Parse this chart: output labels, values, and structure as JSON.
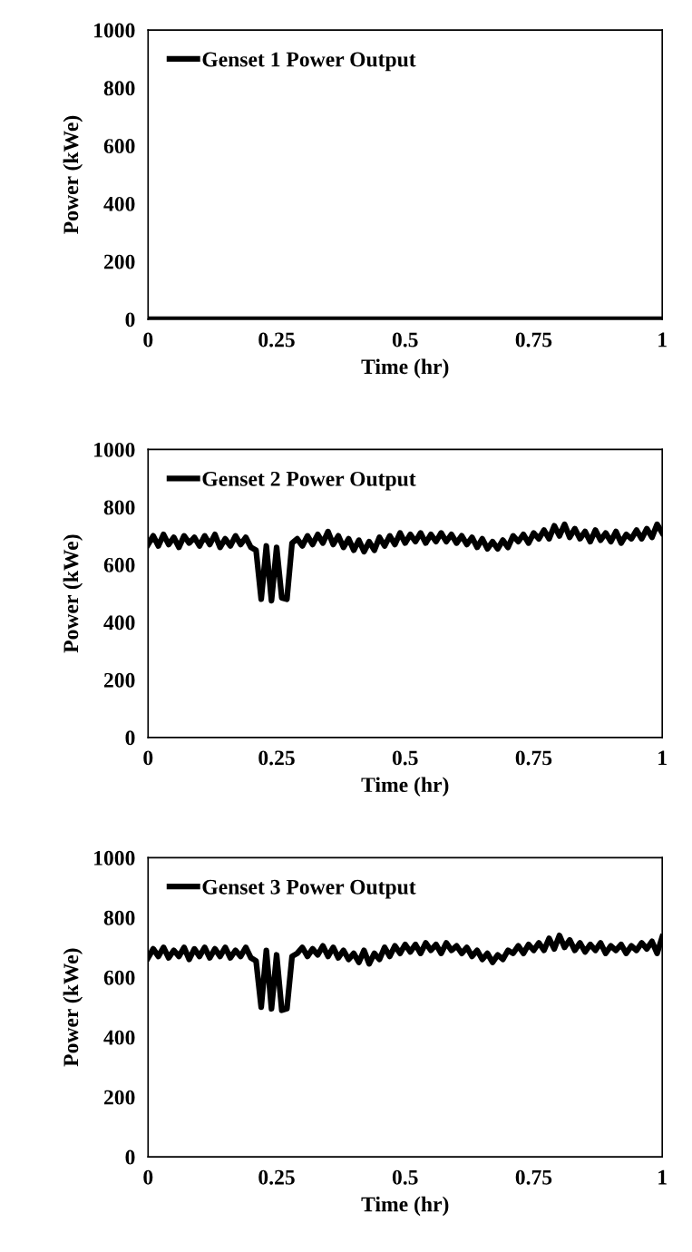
{
  "chart_data": [
    {
      "type": "line",
      "xlabel": "Time (hr)",
      "ylabel": "Power (kWe)",
      "xlim": [
        0,
        1
      ],
      "xticks": [
        0,
        0.25,
        0.5,
        0.75,
        1
      ],
      "ylim": [
        0,
        1000
      ],
      "yticks": [
        0,
        200,
        400,
        600,
        800,
        1000
      ],
      "legend": "top left",
      "series": [
        {
          "name": "Genset 1 Power Output",
          "color": "#000000",
          "x": [
            0,
            1
          ],
          "values": [
            0,
            0
          ]
        }
      ]
    },
    {
      "type": "line",
      "xlabel": "Time (hr)",
      "ylabel": "Power (kWe)",
      "xlim": [
        0,
        1
      ],
      "xticks": [
        0,
        0.25,
        0.5,
        0.75,
        1
      ],
      "ylim": [
        0,
        1000
      ],
      "yticks": [
        0,
        200,
        400,
        600,
        800,
        1000
      ],
      "legend": "top left",
      "series": [
        {
          "name": "Genset 2 Power Output",
          "color": "#000000",
          "x": [
            0,
            0.01,
            0.02,
            0.03,
            0.04,
            0.05,
            0.06,
            0.07,
            0.08,
            0.09,
            0.1,
            0.11,
            0.12,
            0.13,
            0.14,
            0.15,
            0.16,
            0.17,
            0.18,
            0.19,
            0.2,
            0.21,
            0.22,
            0.23,
            0.24,
            0.25,
            0.26,
            0.27,
            0.28,
            0.29,
            0.3,
            0.31,
            0.32,
            0.33,
            0.34,
            0.35,
            0.36,
            0.37,
            0.38,
            0.39,
            0.4,
            0.41,
            0.42,
            0.43,
            0.44,
            0.45,
            0.46,
            0.47,
            0.48,
            0.49,
            0.5,
            0.51,
            0.52,
            0.53,
            0.54,
            0.55,
            0.56,
            0.57,
            0.58,
            0.59,
            0.6,
            0.61,
            0.62,
            0.63,
            0.64,
            0.65,
            0.66,
            0.67,
            0.68,
            0.69,
            0.7,
            0.71,
            0.72,
            0.73,
            0.74,
            0.75,
            0.76,
            0.77,
            0.78,
            0.79,
            0.8,
            0.81,
            0.82,
            0.83,
            0.84,
            0.85,
            0.86,
            0.87,
            0.88,
            0.89,
            0.9,
            0.91,
            0.92,
            0.93,
            0.94,
            0.95,
            0.96,
            0.97,
            0.98,
            0.99,
            1
          ],
          "values": [
            670,
            700,
            665,
            705,
            670,
            695,
            660,
            700,
            675,
            695,
            665,
            700,
            670,
            705,
            660,
            690,
            665,
            700,
            670,
            695,
            660,
            650,
            480,
            665,
            475,
            660,
            485,
            480,
            675,
            690,
            665,
            700,
            670,
            705,
            675,
            715,
            670,
            700,
            660,
            690,
            650,
            685,
            645,
            680,
            650,
            695,
            665,
            700,
            670,
            710,
            675,
            705,
            680,
            710,
            675,
            705,
            680,
            710,
            680,
            705,
            675,
            700,
            670,
            695,
            660,
            690,
            655,
            680,
            655,
            685,
            660,
            700,
            680,
            705,
            675,
            710,
            690,
            720,
            690,
            735,
            700,
            740,
            695,
            725,
            690,
            715,
            680,
            720,
            685,
            710,
            680,
            715,
            675,
            705,
            690,
            720,
            690,
            725,
            695,
            740,
            710
          ]
        }
      ]
    },
    {
      "type": "line",
      "xlabel": "Time (hr)",
      "ylabel": "Power (kWe)",
      "xlim": [
        0,
        1
      ],
      "xticks": [
        0,
        0.25,
        0.5,
        0.75,
        1
      ],
      "ylim": [
        0,
        1000
      ],
      "yticks": [
        0,
        200,
        400,
        600,
        800,
        1000
      ],
      "legend": "top left",
      "series": [
        {
          "name": "Genset 3 Power Output",
          "color": "#000000",
          "x": [
            0,
            0.01,
            0.02,
            0.03,
            0.04,
            0.05,
            0.06,
            0.07,
            0.08,
            0.09,
            0.1,
            0.11,
            0.12,
            0.13,
            0.14,
            0.15,
            0.16,
            0.17,
            0.18,
            0.19,
            0.2,
            0.21,
            0.22,
            0.23,
            0.24,
            0.25,
            0.26,
            0.27,
            0.28,
            0.29,
            0.3,
            0.31,
            0.32,
            0.33,
            0.34,
            0.35,
            0.36,
            0.37,
            0.38,
            0.39,
            0.4,
            0.41,
            0.42,
            0.43,
            0.44,
            0.45,
            0.46,
            0.47,
            0.48,
            0.49,
            0.5,
            0.51,
            0.52,
            0.53,
            0.54,
            0.55,
            0.56,
            0.57,
            0.58,
            0.59,
            0.6,
            0.61,
            0.62,
            0.63,
            0.64,
            0.65,
            0.66,
            0.67,
            0.68,
            0.69,
            0.7,
            0.71,
            0.72,
            0.73,
            0.74,
            0.75,
            0.76,
            0.77,
            0.78,
            0.79,
            0.8,
            0.81,
            0.82,
            0.83,
            0.84,
            0.85,
            0.86,
            0.87,
            0.88,
            0.89,
            0.9,
            0.91,
            0.92,
            0.93,
            0.94,
            0.95,
            0.96,
            0.97,
            0.98,
            0.99,
            1
          ],
          "values": [
            665,
            695,
            670,
            700,
            665,
            690,
            670,
            700,
            660,
            695,
            670,
            700,
            665,
            695,
            670,
            700,
            665,
            690,
            670,
            700,
            665,
            655,
            500,
            690,
            495,
            675,
            490,
            495,
            670,
            680,
            700,
            670,
            695,
            675,
            705,
            670,
            700,
            665,
            690,
            660,
            680,
            650,
            690,
            645,
            680,
            660,
            700,
            670,
            705,
            680,
            710,
            685,
            710,
            680,
            715,
            690,
            710,
            680,
            715,
            690,
            705,
            680,
            700,
            670,
            690,
            660,
            680,
            650,
            675,
            660,
            690,
            680,
            705,
            680,
            710,
            690,
            715,
            690,
            730,
            695,
            740,
            700,
            725,
            690,
            715,
            685,
            710,
            690,
            715,
            680,
            705,
            690,
            710,
            680,
            705,
            690,
            715,
            695,
            720,
            680,
            735
          ]
        }
      ]
    }
  ]
}
